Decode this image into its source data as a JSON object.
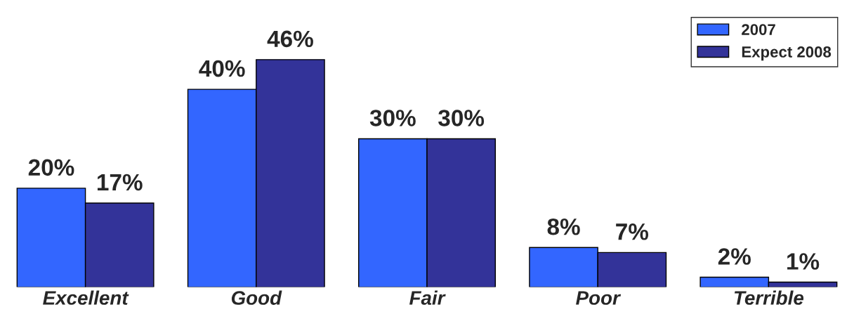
{
  "chart_data": {
    "type": "bar",
    "categories": [
      "Excellent",
      "Good",
      "Fair",
      "Poor",
      "Terrible"
    ],
    "series": [
      {
        "name": "2007",
        "color": "#3366ff",
        "values": [
          20,
          40,
          30,
          8,
          2
        ],
        "value_labels": [
          "20%",
          "40%",
          "30%",
          "8%",
          "2%"
        ]
      },
      {
        "name": "Expect 2008",
        "color": "#333399",
        "values": [
          17,
          46,
          30,
          7,
          1
        ],
        "value_labels": [
          "17%",
          "46%",
          "30%",
          "7%",
          "1%"
        ]
      }
    ],
    "legend": "top right",
    "tick_labels": "x"
  }
}
